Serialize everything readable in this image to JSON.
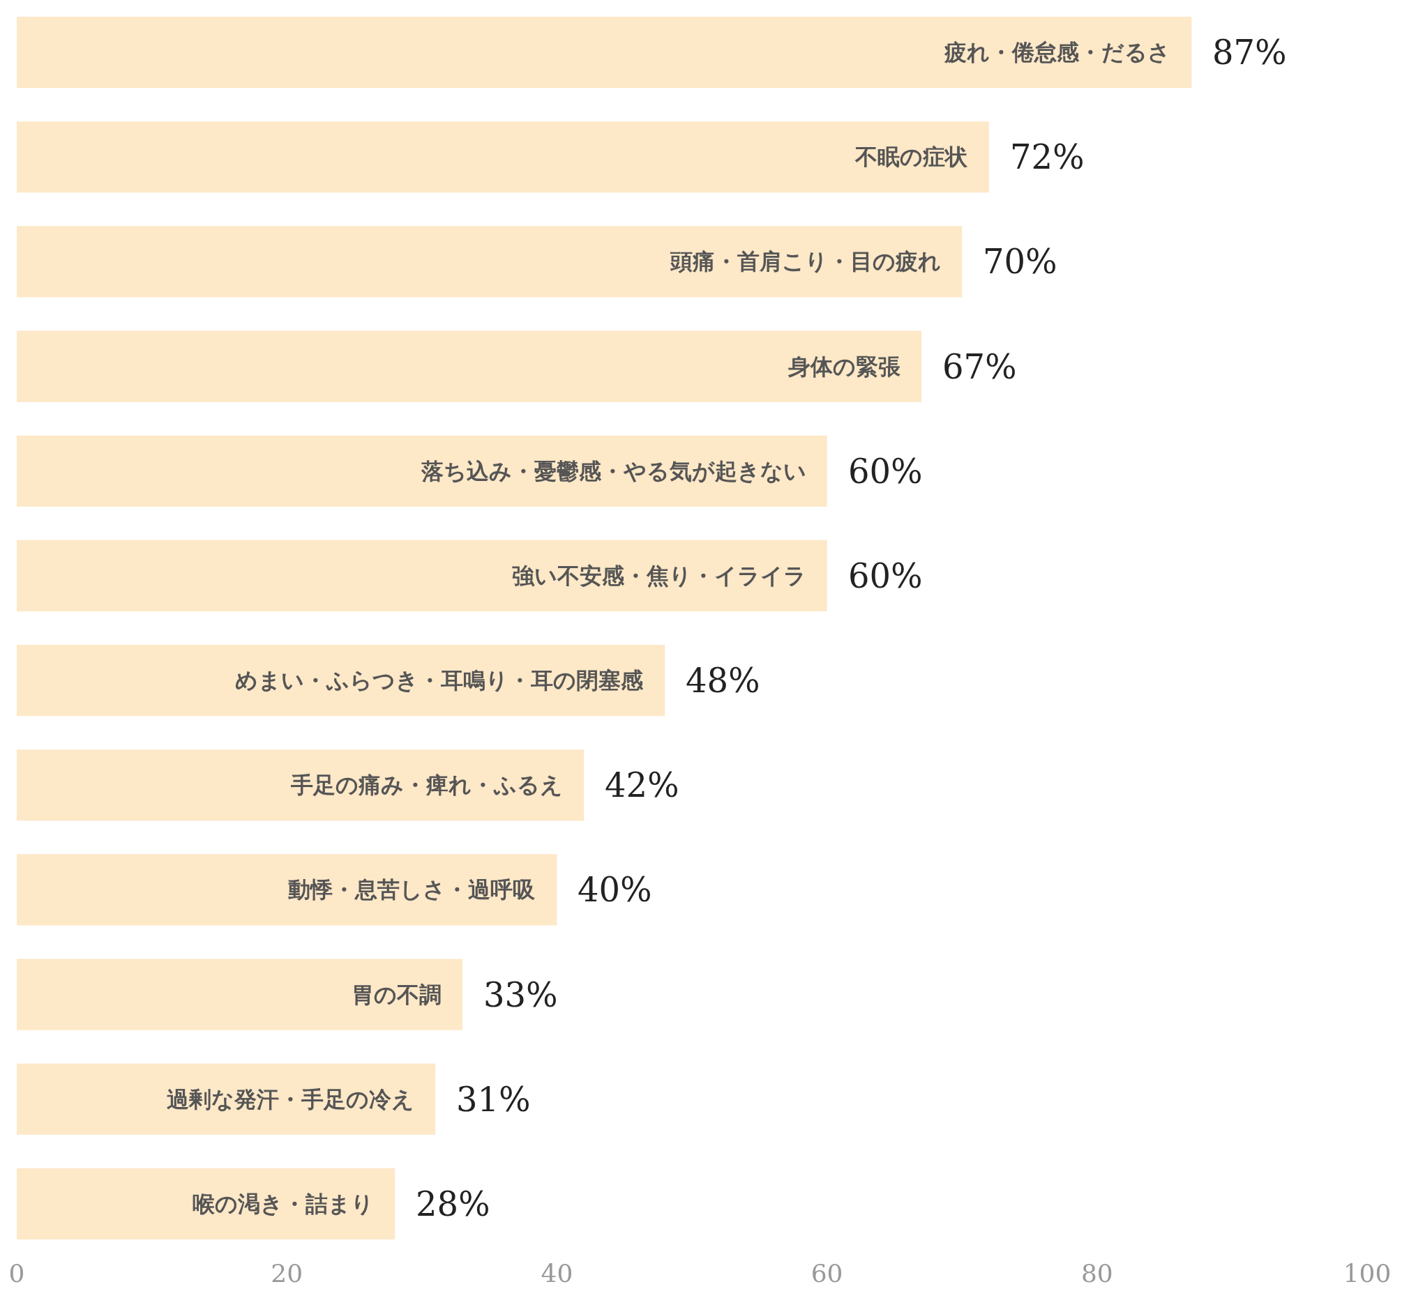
{
  "chart_data": {
    "type": "bar",
    "orientation": "horizontal",
    "categories": [
      "疲れ・倦怠感・だるさ",
      "不眠の症状",
      "頭痛・首肩こり・目の疲れ",
      "身体の緊張",
      "落ち込み・憂鬱感・やる気が起きない",
      "強い不安感・焦り・イライラ",
      "めまい・ふらつき・耳鳴り・耳の閉塞感",
      "手足の痛み・痺れ・ふるえ",
      "動悸・息苦しさ・過呼吸",
      "胃の不調",
      "過剰な発汗・手足の冷え",
      "喉の渇き・詰まり"
    ],
    "values": [
      87,
      72,
      70,
      67,
      60,
      60,
      48,
      42,
      40,
      33,
      31,
      28
    ],
    "value_labels": [
      "87%",
      "72%",
      "70%",
      "67%",
      "60%",
      "60%",
      "48%",
      "42%",
      "40%",
      "33%",
      "31%",
      "28%"
    ],
    "color": "#fde8c8",
    "xlim": [
      0,
      100
    ],
    "xticks": [
      0,
      20,
      40,
      60,
      80,
      100
    ]
  }
}
